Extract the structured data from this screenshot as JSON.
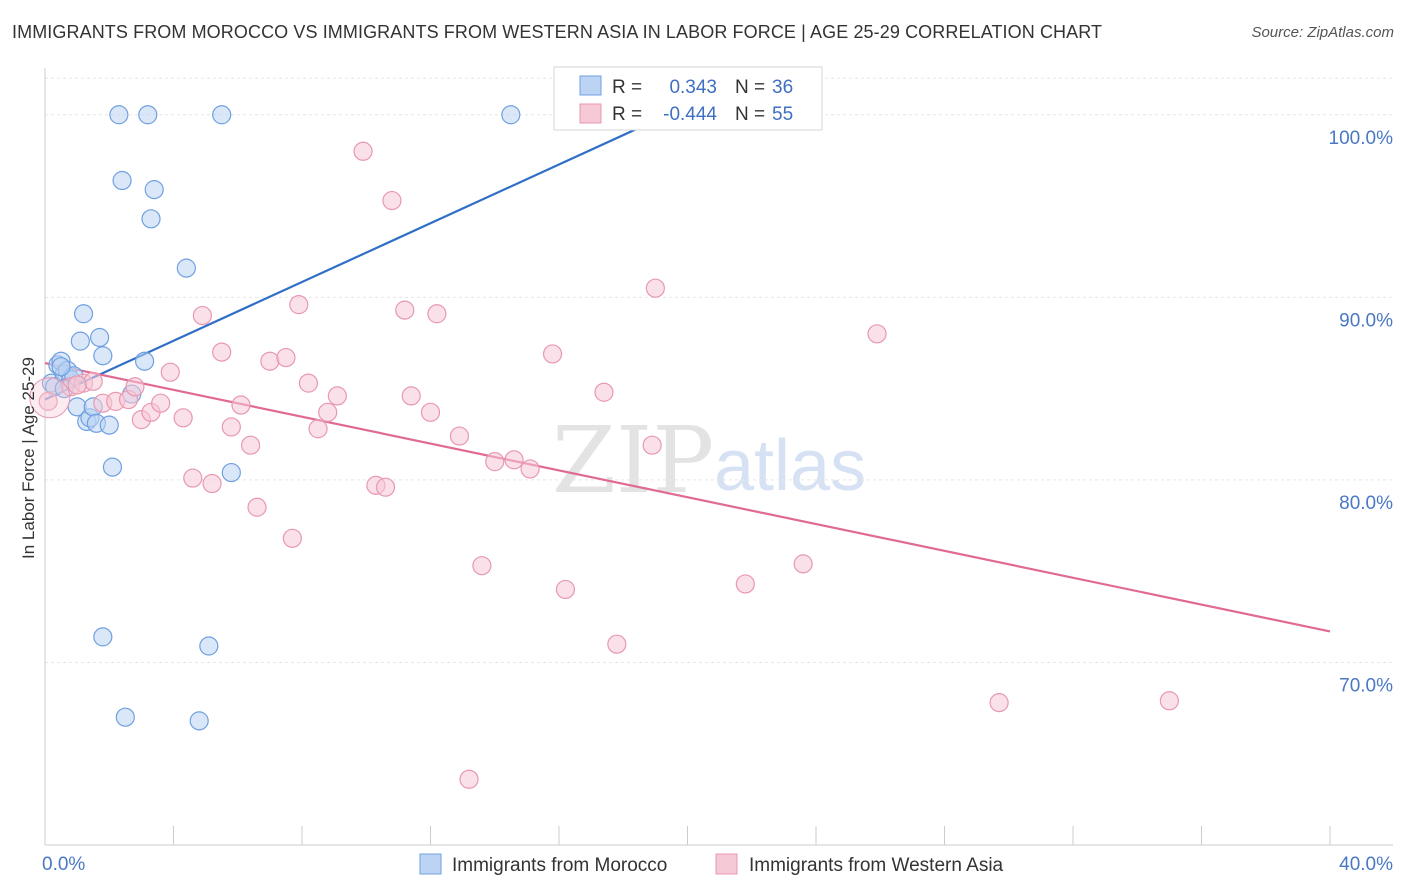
{
  "title": "IMMIGRANTS FROM MOROCCO VS IMMIGRANTS FROM WESTERN ASIA IN LABOR FORCE | AGE 25-29 CORRELATION CHART",
  "source": "Source: ZipAtlas.com",
  "watermark": {
    "zip": "ZIP",
    "atlas": "atlas"
  },
  "chart_data": {
    "type": "scatter",
    "title": "IMMIGRANTS FROM MOROCCO VS IMMIGRANTS FROM WESTERN ASIA IN LABOR FORCE | AGE 25-29 CORRELATION CHART",
    "xlabel": "",
    "ylabel": "In Labor Force | Age 25-29",
    "xlim": [
      0,
      40
    ],
    "ylim": [
      60,
      103
    ],
    "x_tick_labels": [
      "0.0%",
      "40.0%"
    ],
    "y_ticks": [
      70,
      80,
      90,
      100
    ],
    "y_tick_labels": [
      "70.0%",
      "80.0%",
      "90.0%",
      "100.0%"
    ],
    "grid": true,
    "legend_position": "bottom",
    "stats": [
      {
        "r_label": "R =",
        "r": "0.343",
        "n_label": "N =",
        "n": "36"
      },
      {
        "r_label": "R =",
        "r": "-0.444",
        "n_label": "N =",
        "n": "55"
      }
    ],
    "series": [
      {
        "name": "Immigrants from Morocco",
        "color": "#6fa0e0",
        "fill": "#bcd3f3",
        "line_color": "#2f6fc8",
        "trend": {
          "x": [
            0,
            20.5
          ],
          "y": [
            84.4,
            100.9
          ]
        },
        "points": [
          {
            "x": 0.2,
            "y": 85.3
          },
          {
            "x": 0.3,
            "y": 85.1
          },
          {
            "x": 0.4,
            "y": 86.3
          },
          {
            "x": 0.5,
            "y": 86.5
          },
          {
            "x": 0.6,
            "y": 85.8
          },
          {
            "x": 0.7,
            "y": 86.0
          },
          {
            "x": 0.8,
            "y": 85.5
          },
          {
            "x": 0.9,
            "y": 85.7
          },
          {
            "x": 0.5,
            "y": 86.2
          },
          {
            "x": 0.6,
            "y": 85.0
          },
          {
            "x": 1.0,
            "y": 84.0
          },
          {
            "x": 1.1,
            "y": 87.6
          },
          {
            "x": 1.2,
            "y": 89.1
          },
          {
            "x": 1.3,
            "y": 83.2
          },
          {
            "x": 1.4,
            "y": 83.4
          },
          {
            "x": 1.5,
            "y": 84.0
          },
          {
            "x": 1.6,
            "y": 83.1
          },
          {
            "x": 1.7,
            "y": 87.8
          },
          {
            "x": 1.8,
            "y": 86.8
          },
          {
            "x": 1.8,
            "y": 71.4
          },
          {
            "x": 2.0,
            "y": 83.0
          },
          {
            "x": 2.1,
            "y": 80.7
          },
          {
            "x": 2.3,
            "y": 100.0
          },
          {
            "x": 2.4,
            "y": 96.4
          },
          {
            "x": 2.5,
            "y": 67.0
          },
          {
            "x": 2.7,
            "y": 84.7
          },
          {
            "x": 3.1,
            "y": 86.5
          },
          {
            "x": 3.2,
            "y": 100.0
          },
          {
            "x": 3.3,
            "y": 94.3
          },
          {
            "x": 3.4,
            "y": 95.9
          },
          {
            "x": 4.4,
            "y": 91.6
          },
          {
            "x": 4.8,
            "y": 66.8
          },
          {
            "x": 5.1,
            "y": 70.9
          },
          {
            "x": 5.5,
            "y": 100.0
          },
          {
            "x": 5.8,
            "y": 80.4
          },
          {
            "x": 14.5,
            "y": 100.0
          }
        ]
      },
      {
        "name": "Immigrants from Western Asia",
        "color": "#e898b0",
        "fill": "#f6c9d7",
        "line_color": "#e06a93",
        "trend": {
          "x": [
            0,
            40
          ],
          "y": [
            86.4,
            71.7
          ]
        },
        "points": [
          {
            "x": 0.1,
            "y": 84.3
          },
          {
            "x": 0.8,
            "y": 85.1
          },
          {
            "x": 1.2,
            "y": 85.3
          },
          {
            "x": 1.5,
            "y": 85.4
          },
          {
            "x": 1.8,
            "y": 84.2
          },
          {
            "x": 2.2,
            "y": 84.3
          },
          {
            "x": 2.6,
            "y": 84.4
          },
          {
            "x": 2.8,
            "y": 85.1
          },
          {
            "x": 3.0,
            "y": 83.3
          },
          {
            "x": 3.3,
            "y": 83.7
          },
          {
            "x": 3.6,
            "y": 84.2
          },
          {
            "x": 3.9,
            "y": 85.9
          },
          {
            "x": 4.3,
            "y": 83.4
          },
          {
            "x": 4.6,
            "y": 80.1
          },
          {
            "x": 4.9,
            "y": 89.0
          },
          {
            "x": 5.2,
            "y": 79.8
          },
          {
            "x": 5.5,
            "y": 87.0
          },
          {
            "x": 5.8,
            "y": 82.9
          },
          {
            "x": 6.1,
            "y": 84.1
          },
          {
            "x": 6.4,
            "y": 81.9
          },
          {
            "x": 6.6,
            "y": 78.5
          },
          {
            "x": 7.0,
            "y": 86.5
          },
          {
            "x": 7.5,
            "y": 86.7
          },
          {
            "x": 7.7,
            "y": 76.8
          },
          {
            "x": 7.9,
            "y": 89.6
          },
          {
            "x": 8.2,
            "y": 85.3
          },
          {
            "x": 8.5,
            "y": 82.8
          },
          {
            "x": 8.8,
            "y": 83.7
          },
          {
            "x": 9.1,
            "y": 84.6
          },
          {
            "x": 9.9,
            "y": 98.0
          },
          {
            "x": 10.3,
            "y": 79.7
          },
          {
            "x": 10.6,
            "y": 79.6
          },
          {
            "x": 10.8,
            "y": 95.3
          },
          {
            "x": 11.2,
            "y": 89.3
          },
          {
            "x": 11.4,
            "y": 84.6
          },
          {
            "x": 12.0,
            "y": 83.7
          },
          {
            "x": 12.2,
            "y": 89.1
          },
          {
            "x": 12.9,
            "y": 82.4
          },
          {
            "x": 13.2,
            "y": 63.6
          },
          {
            "x": 13.6,
            "y": 75.3
          },
          {
            "x": 14.0,
            "y": 81.0
          },
          {
            "x": 14.6,
            "y": 81.1
          },
          {
            "x": 15.1,
            "y": 80.6
          },
          {
            "x": 15.8,
            "y": 86.9
          },
          {
            "x": 16.2,
            "y": 74.0
          },
          {
            "x": 17.4,
            "y": 84.8
          },
          {
            "x": 17.8,
            "y": 71.0
          },
          {
            "x": 18.9,
            "y": 81.9
          },
          {
            "x": 19.0,
            "y": 90.5
          },
          {
            "x": 21.8,
            "y": 74.3
          },
          {
            "x": 23.6,
            "y": 75.4
          },
          {
            "x": 25.9,
            "y": 88.0
          },
          {
            "x": 29.7,
            "y": 67.8
          },
          {
            "x": 35.0,
            "y": 67.9
          },
          {
            "x": 1.0,
            "y": 85.2
          }
        ]
      }
    ]
  }
}
